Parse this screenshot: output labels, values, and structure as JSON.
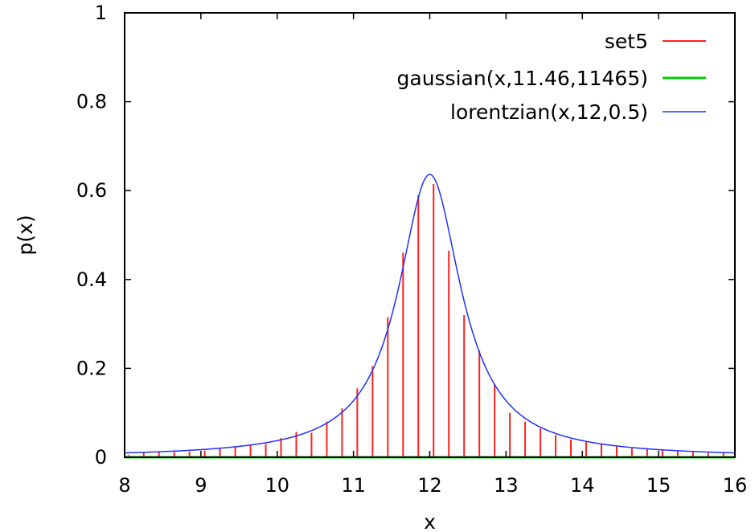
{
  "chart_data": {
    "type": "line",
    "xlabel": "x",
    "ylabel": "p(x)",
    "xlim": [
      8,
      16
    ],
    "ylim": [
      0,
      1
    ],
    "grid": false,
    "legend_position": "top-right",
    "x_ticks": [
      "8",
      "9",
      "10",
      "11",
      "12",
      "13",
      "14",
      "15",
      "16"
    ],
    "y_ticks": [
      "0",
      "0.2",
      "0.4",
      "0.6",
      "0.8",
      "1"
    ],
    "series": [
      {
        "name": "set5",
        "style": "impulses",
        "color": "#ff2020",
        "x": [
          8.05,
          8.25,
          8.45,
          8.65,
          8.85,
          9.05,
          9.25,
          9.45,
          9.65,
          9.85,
          10.05,
          10.25,
          10.45,
          10.65,
          10.85,
          11.05,
          11.25,
          11.45,
          11.65,
          11.85,
          12.05,
          12.25,
          12.45,
          12.65,
          12.85,
          13.05,
          13.25,
          13.45,
          13.65,
          13.85,
          14.05,
          14.25,
          14.45,
          14.65,
          14.85,
          15.05,
          15.25,
          15.45,
          15.65,
          15.85
        ],
        "values": [
          0.005,
          0.01,
          0.012,
          0.012,
          0.013,
          0.015,
          0.02,
          0.025,
          0.028,
          0.03,
          0.043,
          0.057,
          0.055,
          0.08,
          0.11,
          0.155,
          0.205,
          0.315,
          0.46,
          0.59,
          0.615,
          0.465,
          0.32,
          0.24,
          0.165,
          0.1,
          0.08,
          0.065,
          0.05,
          0.04,
          0.035,
          0.03,
          0.025,
          0.02,
          0.02,
          0.016,
          0.015,
          0.012,
          0.01,
          0.01
        ]
      },
      {
        "name": "gaussian(x,11.46,11465)",
        "style": "line",
        "color": "#00cc00",
        "x": [
          8,
          16
        ],
        "values": [
          0,
          0
        ]
      },
      {
        "name": "lorentzian(x,12,0.5)",
        "style": "line",
        "color": "#2030ff",
        "function": "lorentzian",
        "center": 12,
        "half_width": 0.5
      }
    ]
  }
}
